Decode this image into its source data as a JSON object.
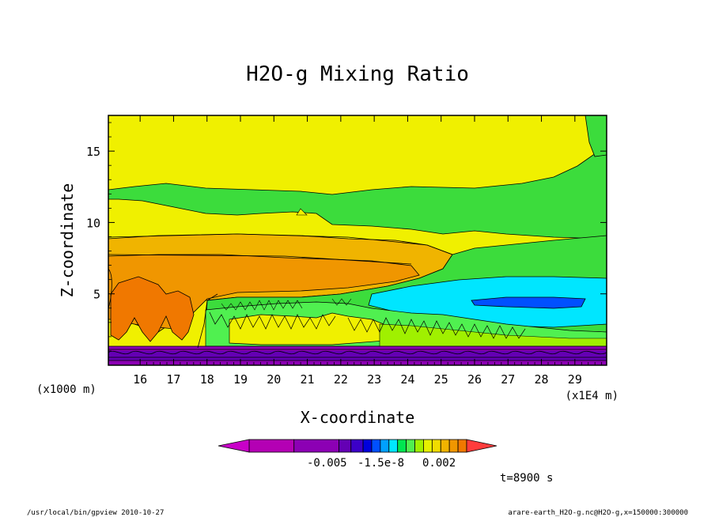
{
  "chart_data": {
    "type": "heatmap",
    "title": "H2O-g Mixing Ratio",
    "xlabel": "X-coordinate",
    "ylabel": "Z-coordinate",
    "x_unit_label": "(x1E4 m)",
    "y_unit_label": "(x1000 m)",
    "x_ticks": [
      "16",
      "17",
      "18",
      "19",
      "20",
      "21",
      "22",
      "23",
      "24",
      "25",
      "26",
      "27",
      "28",
      "29"
    ],
    "y_ticks": [
      "5",
      "10",
      "15"
    ],
    "xlim": [
      15.05,
      29.95
    ],
    "ylim": [
      0,
      17.5
    ],
    "colorbar": {
      "tick_labels": [
        "-0.005",
        "-1.5e-8",
        "0.002"
      ],
      "colors": [
        "#c800c8",
        "#b400b4",
        "#8c00b4",
        "#6400b4",
        "#3c00c8",
        "#0000dc",
        "#0050ff",
        "#00a0ff",
        "#00e6ff",
        "#00e650",
        "#50f050",
        "#a0f000",
        "#e6f000",
        "#f0dc00",
        "#f0b400",
        "#f09600",
        "#f07800",
        "#ff3c3c"
      ]
    },
    "annotations": {
      "time": "t=8900 s",
      "footer_left": "/usr/local/bin/gpview   2010-10-27",
      "footer_right": "arare-earth_H2O-g.nc@H2O-g,x=150000:300000"
    }
  }
}
